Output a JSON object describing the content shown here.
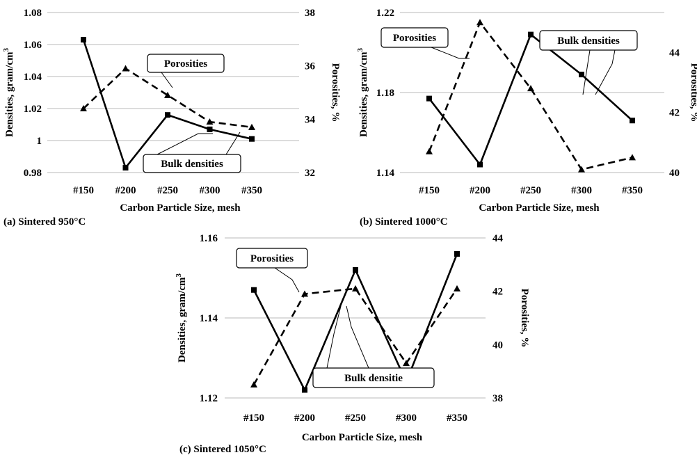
{
  "chart_data": [
    {
      "type": "line",
      "caption": "(a) Sintered 950°C",
      "xlabel": "Carbon Particle Size, mesh",
      "ylabel": "Densities, gram/cm3",
      "y2label": "Porosities, %",
      "categories": [
        "#150",
        "#200",
        "#250",
        "#300",
        "#350"
      ],
      "ylim": [
        0.98,
        1.08
      ],
      "yticks": [
        "0.98",
        "1",
        "1.02",
        "1.04",
        "1.06",
        "1.08"
      ],
      "y2lim": [
        32,
        38
      ],
      "y2ticks": [
        "32",
        "34",
        "36",
        "38"
      ],
      "grid": "horizontal",
      "series": [
        {
          "name": "Bulk densities",
          "axis": "left",
          "style": "solid",
          "marker": "square",
          "values": [
            1.063,
            0.983,
            1.016,
            1.007,
            1.001
          ]
        },
        {
          "name": "Porosities",
          "axis": "right",
          "style": "dashed",
          "marker": "triangle",
          "values": [
            34.4,
            35.9,
            34.9,
            33.9,
            33.7
          ]
        }
      ]
    },
    {
      "type": "line",
      "caption": "(b) Sintered 1000°C",
      "xlabel": "Carbon Particle Size, mesh",
      "ylabel": "Densities, gram/cm3",
      "y2label": "Porosities, %",
      "categories": [
        "#150",
        "#200",
        "#250",
        "#300",
        "#350"
      ],
      "ylim": [
        1.14,
        1.22
      ],
      "yticks": [
        "1.14",
        "1.18",
        "1.22"
      ],
      "y2lim": [
        40,
        45.33
      ],
      "y2ticks": [
        "40",
        "42",
        "44"
      ],
      "grid": "horizontal",
      "series": [
        {
          "name": "Bulk densities",
          "axis": "left",
          "style": "solid",
          "marker": "square",
          "values": [
            1.177,
            1.144,
            1.209,
            1.189,
            1.166
          ]
        },
        {
          "name": "Porosities",
          "axis": "right",
          "style": "dashed",
          "marker": "triangle",
          "values": [
            40.7,
            45.0,
            42.8,
            40.1,
            40.5
          ]
        }
      ]
    },
    {
      "type": "line",
      "caption": "(c) Sintered 1050°C",
      "xlabel": "Carbon Particle Size, mesh",
      "ylabel": "Densities, gram/cm3",
      "y2label": "Porosities, %",
      "categories": [
        "#150",
        "#200",
        "#250",
        "#300",
        "#350"
      ],
      "ylim": [
        1.12,
        1.16
      ],
      "yticks": [
        "1.12",
        "1.14",
        "1.16"
      ],
      "y2lim": [
        38,
        44
      ],
      "y2ticks": [
        "38",
        "40",
        "42",
        "44"
      ],
      "grid": "horizontal",
      "series": [
        {
          "name": "Bulk densities",
          "axis": "left",
          "style": "solid",
          "marker": "square",
          "values": [
            1.147,
            1.122,
            1.152,
            1.124,
            1.156
          ]
        },
        {
          "name": "Porosities",
          "axis": "right",
          "style": "dashed",
          "marker": "triangle",
          "values": [
            38.5,
            41.9,
            42.1,
            39.3,
            42.1
          ]
        }
      ]
    }
  ],
  "callouts": {
    "porosities": "Porosities",
    "bulk_densities": "Bulk densities",
    "bulk_densities_c": "Bulk densitie"
  }
}
